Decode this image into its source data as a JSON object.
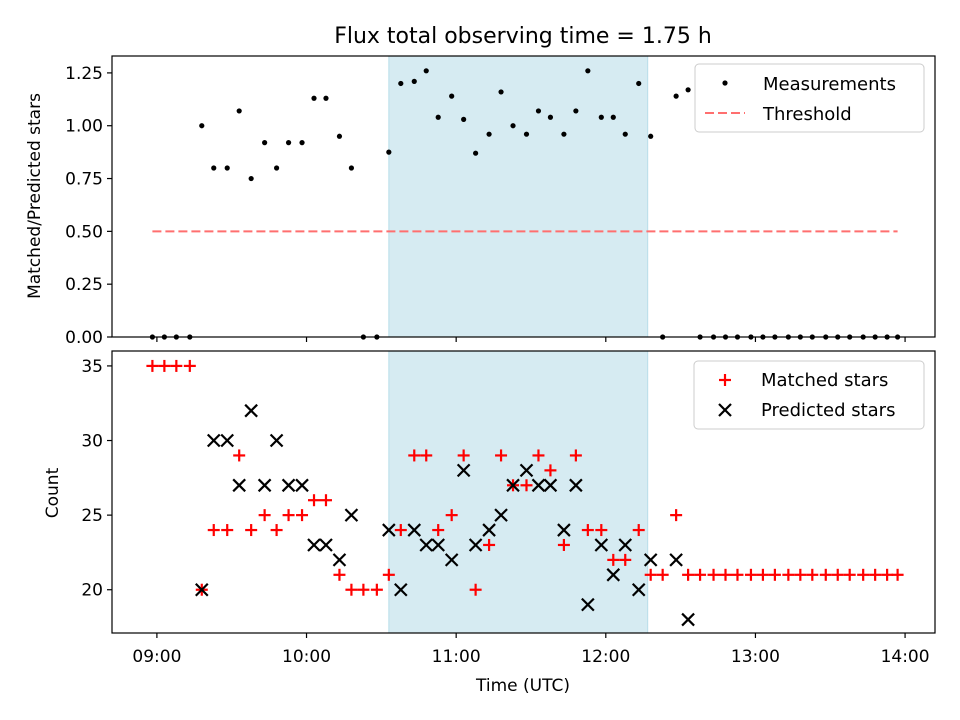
{
  "chart_data": [
    {
      "type": "scatter",
      "title": "Flux total observing time = 1.75 h",
      "xlabel": "",
      "ylabel": "Matched/Predicted stars",
      "xlim_hours": [
        8.7,
        14.2
      ],
      "ylim": [
        0,
        1.33
      ],
      "yticks": [
        0,
        0.25,
        0.5,
        0.75,
        1.0,
        1.25
      ],
      "ytick_labels": [
        "0.00",
        "0.25",
        "0.50",
        "0.75",
        "1.00",
        "1.25"
      ],
      "xticks_hours": [
        9,
        10,
        11,
        12,
        13,
        14
      ],
      "shaded_range_hours": [
        10.55,
        12.28
      ],
      "legend_position": "top-right",
      "legend": {
        "measurements": "Measurements",
        "threshold": "Threshold"
      },
      "threshold": {
        "value": 0.5,
        "x_range_hours": [
          8.97,
          13.95
        ],
        "color": "#ff6f6f"
      },
      "series": [
        {
          "name": "Measurements",
          "x_hours": [
            8.97,
            9.05,
            9.13,
            9.22,
            9.3,
            9.38,
            9.47,
            9.55,
            9.63,
            9.72,
            9.8,
            9.88,
            9.97,
            10.05,
            10.13,
            10.22,
            10.3,
            10.38,
            10.47,
            10.55,
            10.63,
            10.72,
            10.8,
            10.88,
            10.97,
            11.05,
            11.13,
            11.22,
            11.3,
            11.38,
            11.47,
            11.55,
            11.63,
            11.72,
            11.8,
            11.88,
            11.97,
            12.05,
            12.13,
            12.22,
            12.3,
            12.38,
            12.47,
            12.55,
            12.63,
            12.72,
            12.8,
            12.88,
            12.97,
            13.05,
            13.13,
            13.22,
            13.3,
            13.38,
            13.47,
            13.55,
            13.63,
            13.72,
            13.8,
            13.88,
            13.95
          ],
          "y": [
            0,
            0,
            0,
            0,
            1.0,
            0.8,
            0.8,
            1.07,
            0.75,
            0.92,
            0.8,
            0.92,
            0.92,
            1.13,
            1.13,
            0.95,
            0.8,
            0,
            0,
            0.875,
            1.2,
            1.21,
            1.26,
            1.04,
            1.14,
            1.03,
            0.87,
            0.96,
            1.16,
            1.0,
            0.96,
            1.07,
            1.04,
            0.96,
            1.07,
            1.26,
            1.04,
            1.04,
            0.96,
            1.2,
            0.95,
            0,
            1.14,
            1.17,
            0,
            0,
            0,
            0,
            0,
            0,
            0,
            0,
            0,
            0,
            0,
            0,
            0,
            0,
            0,
            0,
            0
          ]
        }
      ]
    },
    {
      "type": "scatter",
      "title": "",
      "xlabel": "Time (UTC)",
      "ylabel": "Count",
      "xlim_hours": [
        8.7,
        14.2
      ],
      "ylim": [
        17.1,
        36.0
      ],
      "yticks": [
        20,
        25,
        30,
        35
      ],
      "ytick_labels": [
        "20",
        "25",
        "30",
        "35"
      ],
      "xticks_hours": [
        9,
        10,
        11,
        12,
        13,
        14
      ],
      "xtick_labels": [
        "09:00",
        "10:00",
        "11:00",
        "12:00",
        "13:00",
        "14:00"
      ],
      "shaded_range_hours": [
        10.55,
        12.28
      ],
      "legend_position": "top-right",
      "legend": {
        "matched": "Matched stars",
        "predicted": "Predicted stars"
      },
      "series": [
        {
          "name": "Matched stars",
          "marker": "+",
          "color": "#ff0000",
          "x_hours": [
            8.97,
            9.05,
            9.13,
            9.22,
            9.3,
            9.38,
            9.47,
            9.55,
            9.63,
            9.72,
            9.8,
            9.88,
            9.97,
            10.05,
            10.13,
            10.22,
            10.3,
            10.38,
            10.47,
            10.55,
            10.63,
            10.72,
            10.8,
            10.88,
            10.97,
            11.05,
            11.13,
            11.22,
            11.3,
            11.38,
            11.47,
            11.55,
            11.63,
            11.72,
            11.8,
            11.88,
            11.97,
            12.05,
            12.13,
            12.22,
            12.3,
            12.38,
            12.47,
            12.55,
            12.63,
            12.72,
            12.8,
            12.88,
            12.97,
            13.05,
            13.13,
            13.22,
            13.3,
            13.38,
            13.47,
            13.55,
            13.63,
            13.72,
            13.8,
            13.88,
            13.95
          ],
          "y": [
            35,
            35,
            35,
            35,
            20,
            24,
            24,
            29,
            24,
            25,
            24,
            25,
            25,
            26,
            26,
            21,
            20,
            20,
            20,
            21,
            24,
            29,
            29,
            24,
            25,
            29,
            20,
            23,
            29,
            27,
            27,
            29,
            28,
            23,
            29,
            24,
            24,
            22,
            22,
            24,
            21,
            21,
            25,
            21,
            21,
            21,
            21,
            21,
            21,
            21,
            21,
            21,
            21,
            21,
            21,
            21,
            21,
            21,
            21,
            21,
            21
          ]
        },
        {
          "name": "Predicted stars",
          "marker": "x",
          "color": "#000000",
          "x_hours": [
            9.3,
            9.38,
            9.47,
            9.55,
            9.63,
            9.72,
            9.8,
            9.88,
            9.97,
            10.05,
            10.13,
            10.22,
            10.3,
            10.55,
            10.63,
            10.72,
            10.8,
            10.88,
            10.97,
            11.05,
            11.13,
            11.22,
            11.3,
            11.38,
            11.47,
            11.55,
            11.63,
            11.72,
            11.8,
            11.88,
            11.97,
            12.05,
            12.13,
            12.22,
            12.3,
            12.47,
            12.55
          ],
          "y": [
            20,
            30,
            30,
            27,
            32,
            27,
            30,
            27,
            27,
            23,
            23,
            22,
            25,
            24,
            20,
            24,
            23,
            23,
            22,
            28,
            23,
            24,
            25,
            27,
            28,
            27,
            27,
            24,
            27,
            19,
            23,
            21,
            23,
            20,
            22,
            22,
            18
          ]
        }
      ]
    }
  ]
}
